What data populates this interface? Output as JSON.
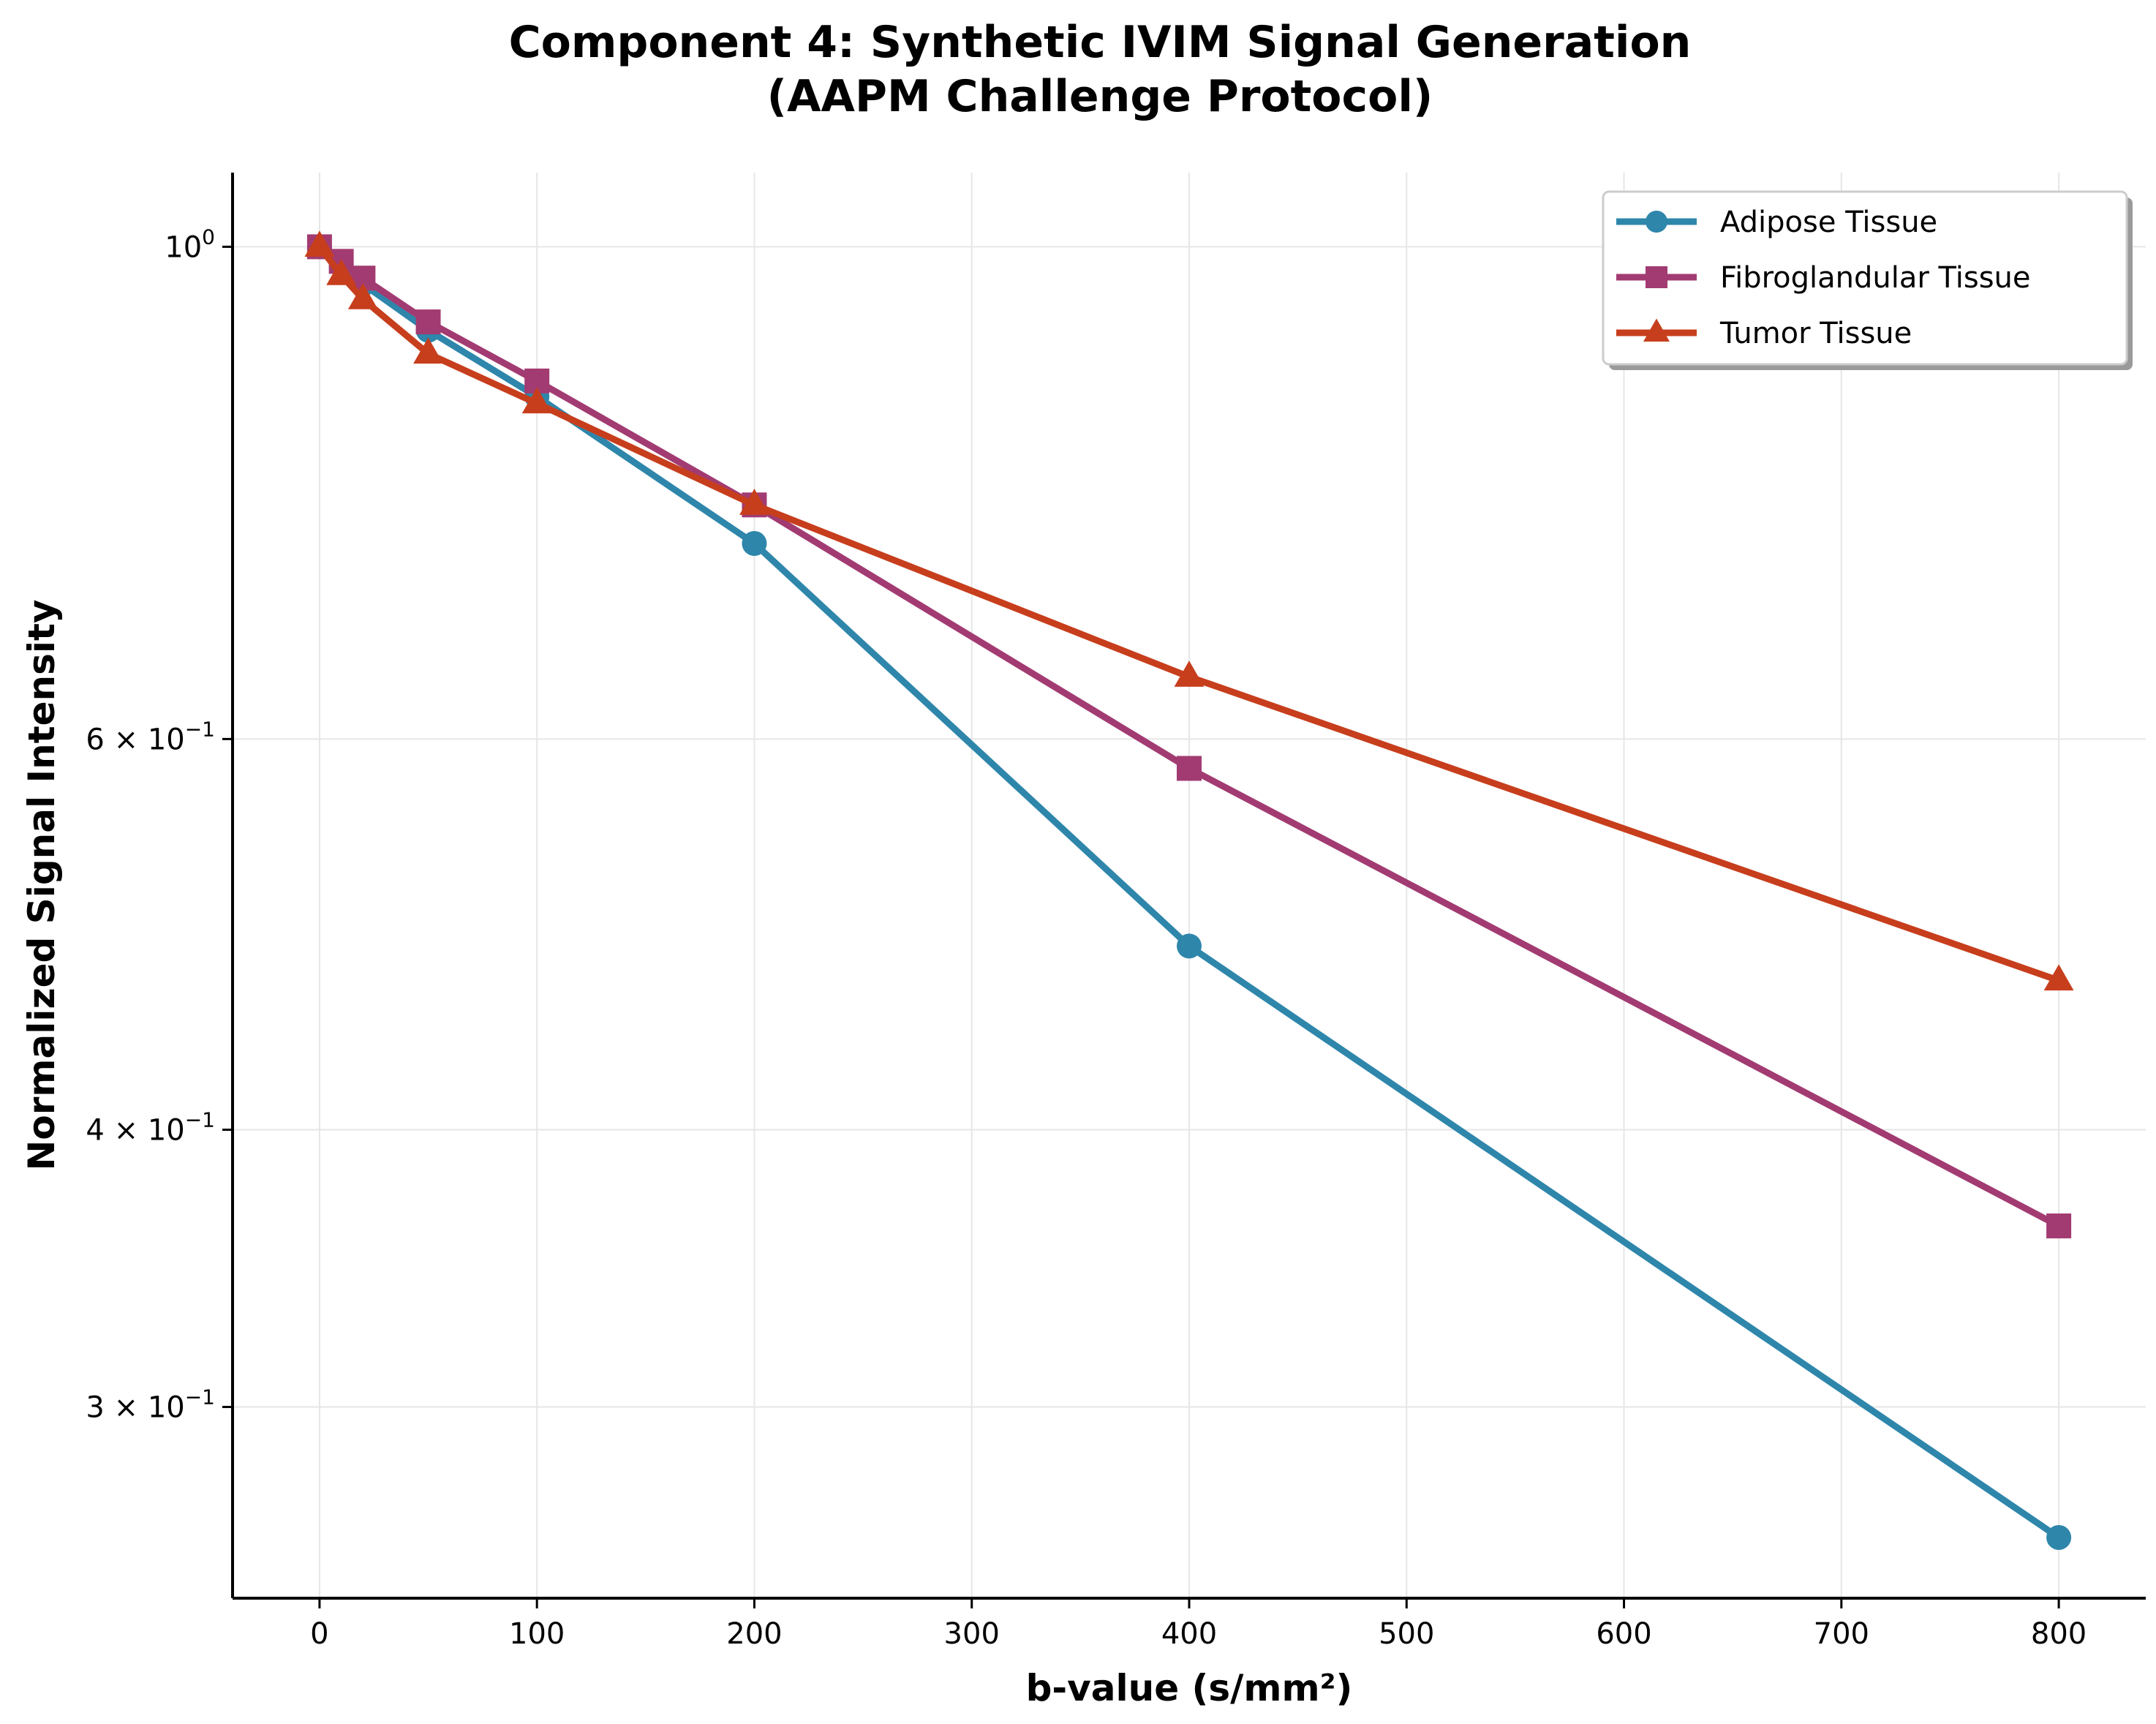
{
  "chart_data": {
    "type": "line",
    "title": [
      "Component 4: Synthetic IVIM Signal Generation",
      "(AAPM Challenge Protocol)"
    ],
    "xlabel": "b-value (s/mm²)",
    "ylabel": "Normalized Signal Intensity",
    "x": [
      0,
      10,
      20,
      50,
      100,
      200,
      400,
      800
    ],
    "xlim": [
      -40,
      840
    ],
    "ylim": [
      0.246,
      1.08
    ],
    "yscale": "log",
    "grid": true,
    "legend_position": "upper-right",
    "x_ticks": [
      {
        "value": 0,
        "label": "0"
      },
      {
        "value": 100,
        "label": "100"
      },
      {
        "value": 200,
        "label": "200"
      },
      {
        "value": 300,
        "label": "300"
      },
      {
        "value": 400,
        "label": "400"
      },
      {
        "value": 500,
        "label": "500"
      },
      {
        "value": 600,
        "label": "600"
      },
      {
        "value": 700,
        "label": "700"
      },
      {
        "value": 800,
        "label": "800"
      }
    ],
    "y_ticks": [
      {
        "value": 1.0,
        "base": "10",
        "exp": "0"
      },
      {
        "value": 0.6,
        "base": "6 × 10",
        "exp": "−1"
      },
      {
        "value": 0.4,
        "base": "4 × 10",
        "exp": "−1"
      },
      {
        "value": 0.3,
        "base": "3 × 10",
        "exp": "−1"
      }
    ],
    "series": [
      {
        "name": "Adipose Tissue",
        "color": "#2e86ab",
        "marker": "circle",
        "values": [
          1.0,
          0.982,
          0.962,
          0.917,
          0.856,
          0.735,
          0.484,
          0.262
        ]
      },
      {
        "name": "Fibroglandular Tissue",
        "color": "#a23b72",
        "marker": "square",
        "values": [
          1.0,
          0.985,
          0.968,
          0.925,
          0.87,
          0.765,
          0.582,
          0.362
        ]
      },
      {
        "name": "Tumor Tissue",
        "color": "#c73e1d",
        "marker": "triangle",
        "values": [
          1.0,
          0.971,
          0.947,
          0.895,
          0.85,
          0.765,
          0.64,
          0.467
        ]
      }
    ]
  }
}
